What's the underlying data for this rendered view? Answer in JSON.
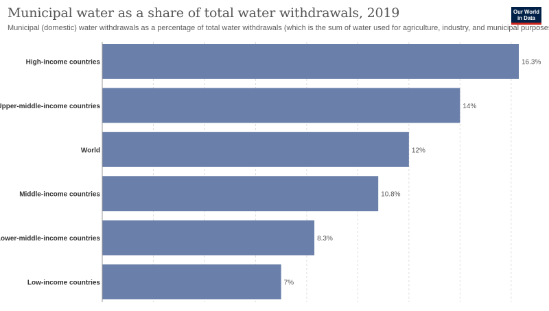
{
  "header": {
    "title": "Municipal water as a share of total water withdrawals, 2019",
    "subtitle": "Municipal (domestic) water withdrawals as a percentage of total water withdrawals (which is the sum of water used for agriculture, industry, and municipal purposes).",
    "logo_line1": "Our World",
    "logo_line2": "in Data"
  },
  "colors": {
    "bar": "#6a7fa9",
    "grid": "#dddddd",
    "label": "#333333",
    "value": "#555555",
    "axis": "#999999"
  },
  "chart_data": {
    "type": "bar",
    "orientation": "horizontal",
    "categories": [
      "High-income countries",
      "Upper-middle-income countries",
      "World",
      "Middle-income countries",
      "Lower-middle-income countries",
      "Low-income countries"
    ],
    "values": [
      16.3,
      14,
      12,
      10.8,
      8.3,
      7
    ],
    "value_labels": [
      "16.3%",
      "14%",
      "12%",
      "10.8%",
      "8.3%",
      "7%"
    ],
    "unit": "%",
    "xlim": [
      0,
      16.3
    ],
    "gridlines": [
      2,
      4,
      6,
      8,
      10,
      12,
      14,
      16
    ],
    "grid": true,
    "legend": false
  }
}
